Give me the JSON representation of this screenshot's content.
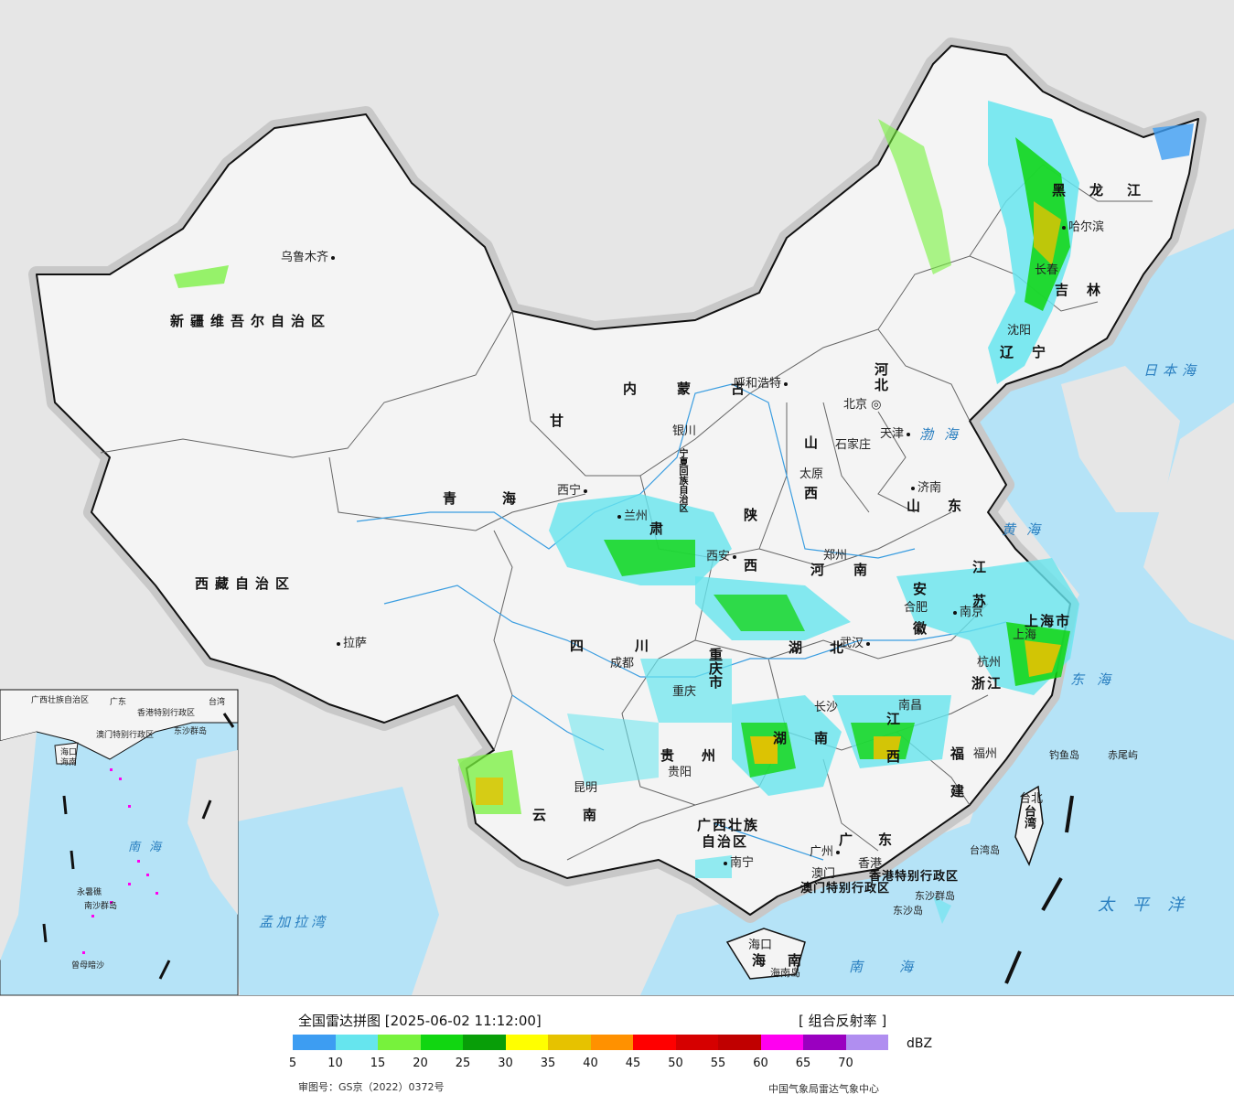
{
  "map": {
    "provinces": [
      {
        "name": "新疆维吾尔自治区"
      },
      {
        "name": "西藏自治区"
      },
      {
        "name": "青海"
      },
      {
        "name": "甘"
      },
      {
        "name": "肃"
      },
      {
        "name": "内蒙古"
      },
      {
        "name": "四川"
      },
      {
        "name": "云南"
      },
      {
        "name": "贵州"
      },
      {
        "name": "广西壮族"
      },
      {
        "name": "自治区"
      },
      {
        "name": "广东"
      },
      {
        "name": "湖南"
      },
      {
        "name": "湖北"
      },
      {
        "name": "河南"
      },
      {
        "name": "河北"
      },
      {
        "name": "山西"
      },
      {
        "name": "陕西"
      },
      {
        "name": "山东"
      },
      {
        "name": "江苏"
      },
      {
        "name": "安徽"
      },
      {
        "name": "浙江"
      },
      {
        "name": "福建"
      },
      {
        "name": "江西"
      },
      {
        "name": "重庆市"
      },
      {
        "name": "上海市"
      },
      {
        "name": "辽宁"
      },
      {
        "name": "吉林"
      },
      {
        "name": "黑龙江"
      },
      {
        "name": "海南"
      },
      {
        "name": "台湾"
      },
      {
        "name": "宁夏回族自治区"
      },
      {
        "name": "香港特别行政区"
      },
      {
        "name": "澳门特别行政区"
      }
    ],
    "cities": [
      {
        "name": "乌鲁木齐"
      },
      {
        "name": "拉萨"
      },
      {
        "name": "西宁"
      },
      {
        "name": "兰州"
      },
      {
        "name": "银川"
      },
      {
        "name": "呼和浩特"
      },
      {
        "name": "北京"
      },
      {
        "name": "天津"
      },
      {
        "name": "石家庄"
      },
      {
        "name": "太原"
      },
      {
        "name": "济南"
      },
      {
        "name": "西安"
      },
      {
        "name": "郑州"
      },
      {
        "name": "南京"
      },
      {
        "name": "合肥"
      },
      {
        "name": "上海"
      },
      {
        "name": "杭州"
      },
      {
        "name": "武汉"
      },
      {
        "name": "成都"
      },
      {
        "name": "重庆"
      },
      {
        "name": "长沙"
      },
      {
        "name": "南昌"
      },
      {
        "name": "福州"
      },
      {
        "name": "贵阳"
      },
      {
        "name": "昆明"
      },
      {
        "name": "南宁"
      },
      {
        "name": "广州"
      },
      {
        "name": "澳门"
      },
      {
        "name": "香港"
      },
      {
        "name": "海口"
      },
      {
        "name": "台北"
      },
      {
        "name": "沈阳"
      },
      {
        "name": "长春"
      },
      {
        "name": "哈尔滨"
      }
    ],
    "seas": [
      {
        "name": "日本海"
      },
      {
        "name": "渤海"
      },
      {
        "name": "黄海"
      },
      {
        "name": "东海"
      },
      {
        "name": "太平洋"
      },
      {
        "name": "南海"
      },
      {
        "name": "孟加拉湾"
      }
    ],
    "islands": [
      {
        "name": "钓鱼岛"
      },
      {
        "name": "赤尾屿"
      },
      {
        "name": "台湾岛"
      },
      {
        "name": "东沙群岛"
      },
      {
        "name": "东沙岛"
      },
      {
        "name": "海南岛"
      }
    ],
    "inset": {
      "labels": [
        {
          "name": "广西壮族自治区"
        },
        {
          "name": "广东"
        },
        {
          "name": "香港特别行政区"
        },
        {
          "name": "澳门特别行政区"
        },
        {
          "name": "台湾"
        },
        {
          "name": "东沙群岛"
        },
        {
          "name": "海口"
        },
        {
          "name": "海南"
        },
        {
          "name": "南海"
        },
        {
          "name": "永暑礁"
        },
        {
          "name": "南沙群岛"
        },
        {
          "name": "曾母暗沙"
        }
      ]
    }
  },
  "legend": {
    "title": "全国雷达拼图 [2025-06-02 11:12:00]",
    "product": "[ 组合反射率 ]",
    "unit": "dBZ",
    "colors": [
      "#3d9df2",
      "#66e5ee",
      "#77f23c",
      "#11d611",
      "#089e08",
      "#ffff00",
      "#e6c200",
      "#ff9100",
      "#ff0000",
      "#d60000",
      "#c00000",
      "#ff00f0",
      "#9a00c0",
      "#b08ef0"
    ],
    "ticks": [
      "5",
      "10",
      "15",
      "20",
      "25",
      "30",
      "35",
      "40",
      "45",
      "50",
      "55",
      "60",
      "65",
      "70"
    ],
    "approval": "审图号：GS京（2022）0372号",
    "agency": "中国气象局雷达气象中心"
  }
}
